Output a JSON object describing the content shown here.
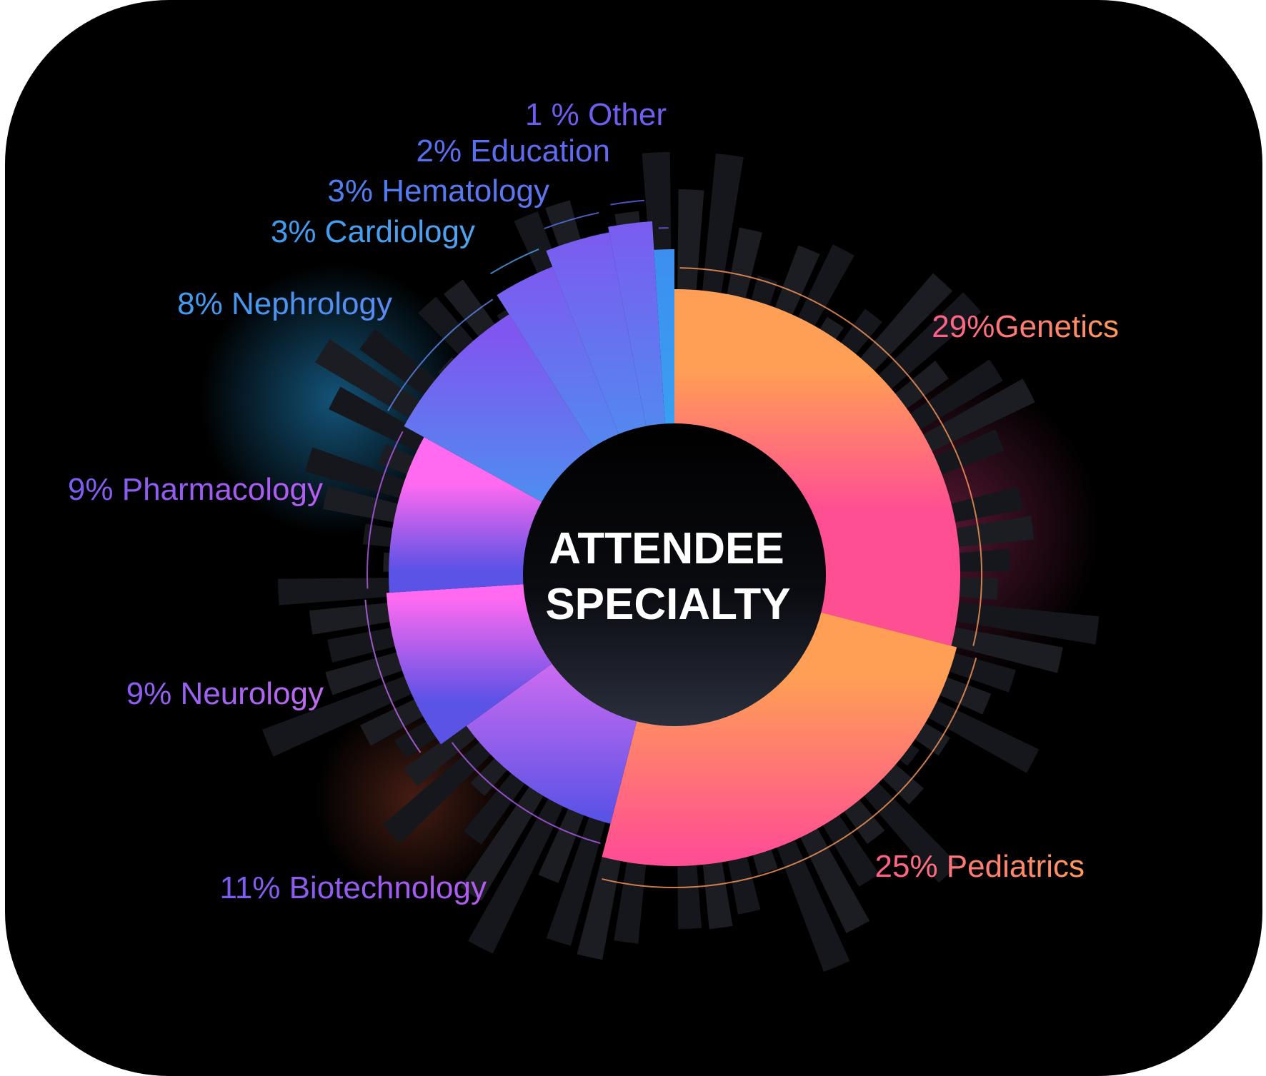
{
  "chart_data": {
    "type": "pie",
    "title_lines": [
      "ATTENDEE",
      "SPECIALTY"
    ],
    "slices": [
      {
        "label": "29%Genetics",
        "percent": 29,
        "radius_level": 1.0,
        "colors": [
          "#ff9e55",
          "#ff4f93"
        ],
        "label_colors": [
          "#ff5e8a",
          "#ff9a5a"
        ]
      },
      {
        "label": "25% Pediatrics",
        "percent": 25,
        "radius_level": 1.02,
        "colors": [
          "#ff9e55",
          "#ff4f93"
        ],
        "label_colors": [
          "#ff5e8a",
          "#ff9a5a"
        ]
      },
      {
        "label": "11% Biotechnology",
        "percent": 11,
        "radius_level": 0.9,
        "colors": [
          "#c66af0",
          "#5b52e6"
        ],
        "label_colors": [
          "#7a5cf0",
          "#b35cf2"
        ]
      },
      {
        "label": "9% Neurology",
        "percent": 9,
        "radius_level": 1.01,
        "colors": [
          "#ff6af0",
          "#5b52e6"
        ],
        "label_colors": [
          "#8a5cf0",
          "#c06af2"
        ]
      },
      {
        "label": "9% Pharmacology",
        "percent": 9,
        "radius_level": 1.0,
        "colors": [
          "#ff6af0",
          "#5b52e6"
        ],
        "label_colors": [
          "#7c5cf0",
          "#b85cf2"
        ]
      },
      {
        "label": "8% Nephrology",
        "percent": 8,
        "radius_level": 1.08,
        "colors": [
          "#8056f0",
          "#4f8df0"
        ],
        "label_colors": [
          "#3f9cf0",
          "#5b8af0"
        ]
      },
      {
        "label": "3% Cardiology",
        "percent": 3,
        "radius_level": 1.16,
        "colors": [
          "#8056f0",
          "#4f8df0"
        ],
        "label_colors": [
          "#3f9cf0",
          "#4fa2f0"
        ]
      },
      {
        "label": "3% Hematology",
        "percent": 3,
        "radius_level": 1.22,
        "colors": [
          "#8056f0",
          "#4f8df0"
        ],
        "label_colors": [
          "#4f7ef0",
          "#5e74f0"
        ]
      },
      {
        "label": "2% Education",
        "percent": 2,
        "radius_level": 1.24,
        "colors": [
          "#8056f0",
          "#4f8df0"
        ],
        "label_colors": [
          "#5670f0",
          "#6368f0"
        ]
      },
      {
        "label": "1 % Other",
        "percent": 1,
        "radius_level": 1.14,
        "colors": [
          "#3c8cf0",
          "#3aa2f0"
        ],
        "label_colors": [
          "#6a5cf0",
          "#7060f0"
        ]
      }
    ]
  }
}
